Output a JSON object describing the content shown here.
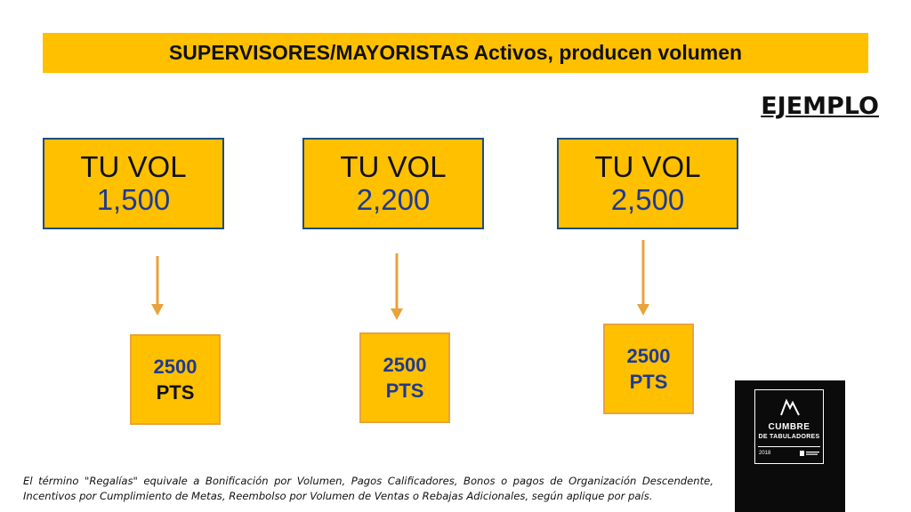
{
  "banner": {
    "title": "SUPERVISORES/MAYORISTAS Activos, producen volumen"
  },
  "example_label": "EJEMPLO",
  "volumes": [
    {
      "label": "TU VOL",
      "value": "1,500",
      "points": "2500",
      "points_unit": "PTS"
    },
    {
      "label": "TU VOL",
      "value": "2,200",
      "points": "2500",
      "points_unit": "PTS"
    },
    {
      "label": "TU VOL",
      "value": "2,500",
      "points": "2500",
      "points_unit": "PTS"
    }
  ],
  "footnote": "El término \"Regalías\" equivale a Bonificación por Volumen, Pagos Calificadores, Bonos o pagos de Organización Descendente, Incentivos por Cumplimiento de Metas, Reembolso por Volumen de Ventas o Rebajas Adicionales, según aplique por país.",
  "logo": {
    "line1": "CUMBRE",
    "line2": "DE TABULADORES",
    "year": "2018"
  },
  "colors": {
    "box_fill": "#FFC000",
    "value_blue": "#1F3A93",
    "arrow": "#E8A33C",
    "box_border": "#1F4E79"
  }
}
